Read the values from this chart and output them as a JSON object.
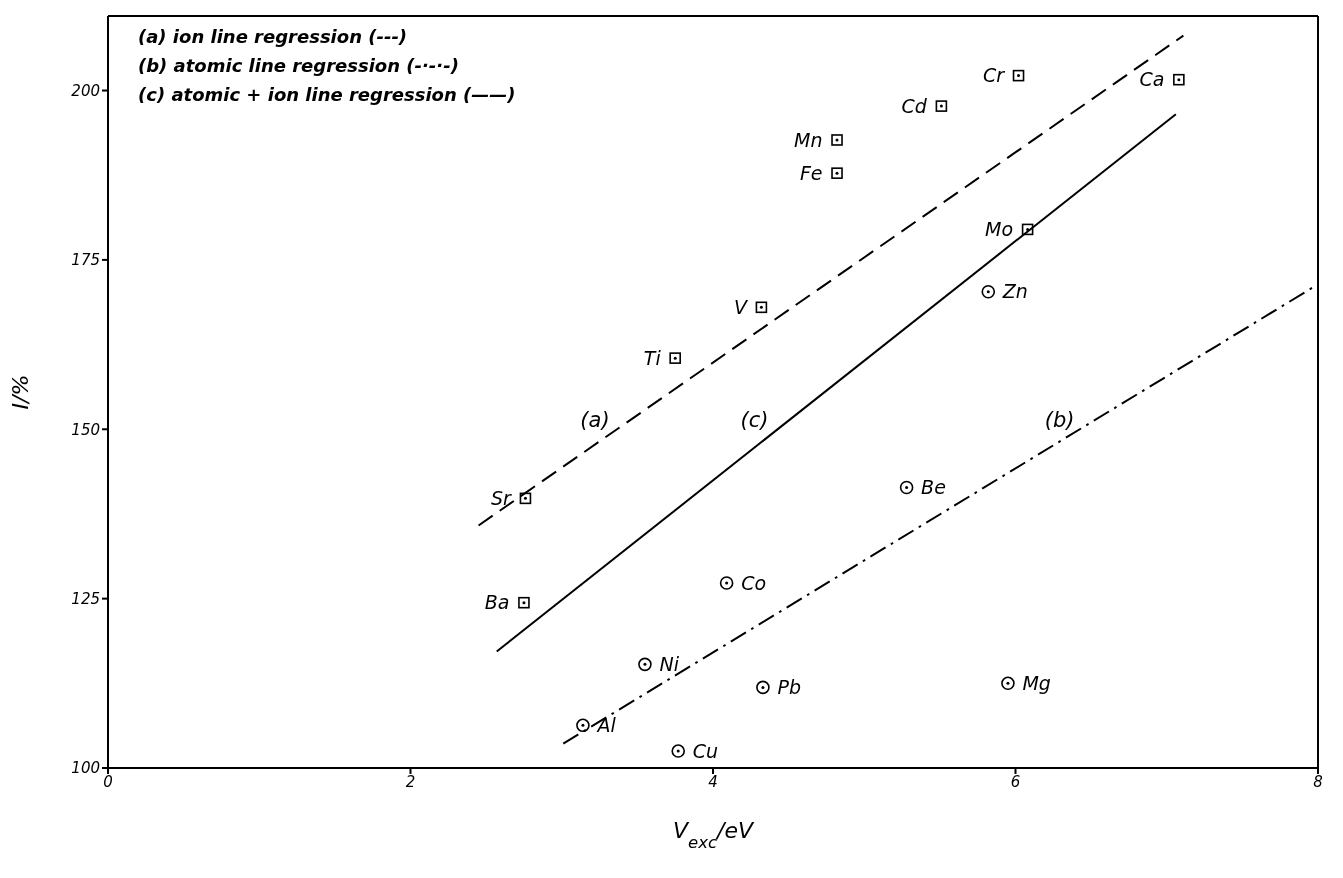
{
  "chart_data": {
    "type": "scatter",
    "xlabel": "V$_{exc}$/eV",
    "ylabel": "I/%",
    "xlim": [
      0,
      8
    ],
    "xticks": [
      0,
      2,
      4,
      6,
      8
    ],
    "ylim": [
      100,
      211
    ],
    "yticks": [
      100,
      125,
      150,
      175,
      200
    ],
    "annotations": [
      "(a) ion line regression (---)",
      "(b) atomic line regression (-·-·-)",
      "(c) atomic + ion line regression (——)"
    ],
    "series": [
      {
        "marker": "square",
        "color": "#000000",
        "x": [
          6.02,
          7.08,
          5.51,
          4.82,
          4.82,
          6.08,
          4.32,
          3.75,
          2.76,
          2.75
        ],
        "values": [
          202.2,
          201.6,
          197.7,
          192.7,
          187.8,
          179.5,
          168.0,
          160.5,
          139.8,
          124.4
        ],
        "value_labels": [
          "Cr",
          "Ca",
          "Cd",
          "Mn",
          "Fe",
          "Mo",
          "V",
          "Ti",
          "Sr",
          "Ba"
        ]
      },
      {
        "marker": "circle",
        "color": "#000000",
        "x": [
          5.82,
          5.28,
          4.09,
          3.55,
          4.33,
          5.95,
          3.14,
          3.77
        ],
        "values": [
          170.3,
          141.4,
          127.3,
          115.3,
          111.9,
          112.5,
          106.3,
          102.5
        ],
        "value_labels": [
          "Zn",
          "Be",
          "Co",
          "Ni",
          "Pb",
          "Mg",
          "Al",
          "Cu"
        ]
      },
      {
        "type": "line",
        "name": "(a)",
        "marker": "none",
        "line_style": "dashed",
        "color": "#000000",
        "x": [
          2.45,
          7.11
        ],
        "values": [
          135.8,
          208.1
        ]
      },
      {
        "type": "line",
        "name": "(c)",
        "marker": "none",
        "line_style": "solid",
        "color": "#000000",
        "x": [
          2.57,
          7.06
        ],
        "values": [
          117.2,
          196.5
        ]
      },
      {
        "type": "line",
        "name": "(b)",
        "marker": "none",
        "line_style": "dashdot",
        "color": "#000000",
        "x": [
          3.01,
          8.0
        ],
        "values": [
          103.6,
          171.4
        ]
      }
    ]
  }
}
